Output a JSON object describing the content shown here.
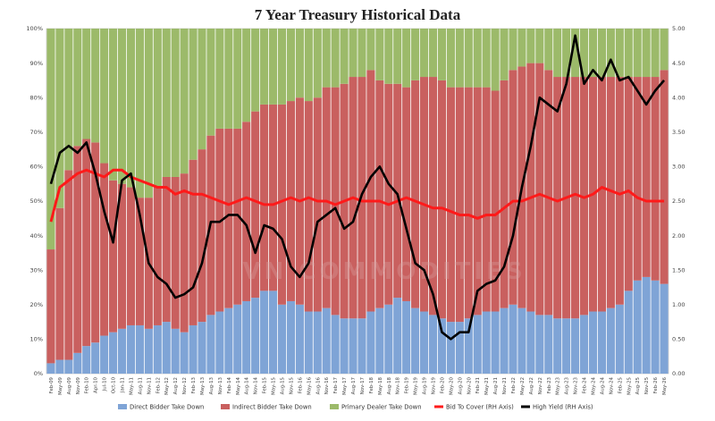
{
  "chart_data": {
    "type": "bar",
    "title": "7 Year Treasury Historical Data",
    "watermark": "VN COMMODITIES",
    "left_axis": {
      "ylim": [
        0,
        100
      ],
      "ticks": [
        "0%",
        "10%",
        "20%",
        "30%",
        "40%",
        "50%",
        "60%",
        "70%",
        "80%",
        "90%",
        "100%"
      ]
    },
    "right_axis": {
      "ylim": [
        0,
        5
      ],
      "ticks": [
        "0.00",
        "0.50",
        "1.00",
        "1.50",
        "2.00",
        "2.50",
        "3.00",
        "3.50",
        "4.00",
        "4.50",
        "5.00"
      ]
    },
    "x_tick_labels": [
      "Feb-09",
      "May-09",
      "Aug-09",
      "Nov-09",
      "Feb-10",
      "Apr-10",
      "Jul-10",
      "Oct-10",
      "Jan-11",
      "May-11",
      "Aug-11",
      "Nov-11",
      "Feb-12",
      "May-12",
      "Aug-12",
      "Nov-12",
      "Feb-13",
      "May-13",
      "Aug-13",
      "Nov-13",
      "Feb-14",
      "May-14",
      "Aug-14",
      "Nov-14",
      "Feb-15",
      "May-15",
      "Aug-15",
      "Nov-15",
      "Feb-16",
      "May-16",
      "Aug-16",
      "Nov-16",
      "Feb-17",
      "May-17",
      "Aug-17",
      "Nov-17",
      "Feb-18",
      "May-18",
      "Aug-18",
      "Nov-18",
      "Feb-19",
      "May-19",
      "Aug-19",
      "Nov-19",
      "Feb-20",
      "May-20",
      "Aug-20",
      "Nov-20",
      "Feb-21",
      "May-21",
      "Aug-21",
      "Nov-21",
      "Feb-22",
      "May-22",
      "Aug-22",
      "Nov-22",
      "Feb-23",
      "May-23",
      "Aug-23",
      "Nov-23",
      "Feb-24",
      "May-24",
      "Aug-24",
      "Nov-24",
      "Feb-25",
      "May-25",
      "Aug-25",
      "Nov-25",
      "Feb-26",
      "May-26"
    ],
    "legend": [
      {
        "label": "Direct Bidder Take Down",
        "color": "#7fa4d6",
        "kind": "bar"
      },
      {
        "label": "Indirect Bidder Take Down",
        "color": "#c9605f",
        "kind": "bar"
      },
      {
        "label": "Primary Dealer Take Down",
        "color": "#9cba6a",
        "kind": "bar"
      },
      {
        "label": "Bid To Cover (RH Axis)",
        "color": "#ff1a1a",
        "kind": "line"
      },
      {
        "label": "High Yield (RH Axis)",
        "color": "#000000",
        "kind": "line"
      }
    ],
    "series": [
      {
        "name": "Direct Bidder Take Down",
        "axis": "left",
        "unit": "%",
        "values": [
          3,
          4,
          4,
          6,
          8,
          9,
          11,
          12,
          13,
          14,
          14,
          13,
          14,
          15,
          13,
          12,
          14,
          15,
          17,
          18,
          19,
          20,
          21,
          22,
          24,
          24,
          20,
          21,
          20,
          18,
          18,
          19,
          17,
          16,
          16,
          16,
          18,
          19,
          20,
          22,
          21,
          19,
          18,
          17,
          16,
          15,
          15,
          16,
          17,
          18,
          18,
          19,
          20,
          19,
          18,
          17,
          17,
          16,
          16,
          16,
          17,
          18,
          18,
          19,
          20,
          24,
          27,
          28,
          27,
          26
        ]
      },
      {
        "name": "Indirect Bidder Take Down",
        "axis": "left",
        "unit": "%",
        "values": [
          33,
          44,
          55,
          60,
          60,
          58,
          50,
          44,
          42,
          40,
          37,
          38,
          40,
          42,
          44,
          46,
          48,
          50,
          52,
          53,
          52,
          51,
          52,
          54,
          54,
          54,
          58,
          58,
          60,
          61,
          62,
          64,
          66,
          68,
          70,
          70,
          70,
          66,
          64,
          62,
          62,
          66,
          68,
          69,
          69,
          68,
          68,
          67,
          66,
          65,
          64,
          66,
          68,
          70,
          72,
          73,
          71,
          70,
          70,
          70,
          69,
          68,
          68,
          67,
          66,
          62,
          59,
          58,
          59,
          62
        ]
      },
      {
        "name": "Primary Dealer Take Down",
        "axis": "left",
        "unit": "%",
        "values": [
          64,
          52,
          41,
          34,
          32,
          33,
          39,
          44,
          45,
          46,
          49,
          49,
          46,
          43,
          43,
          42,
          38,
          35,
          31,
          29,
          29,
          29,
          27,
          24,
          22,
          22,
          22,
          21,
          20,
          21,
          20,
          17,
          17,
          16,
          14,
          14,
          12,
          15,
          16,
          16,
          17,
          15,
          14,
          14,
          15,
          17,
          17,
          17,
          17,
          17,
          18,
          15,
          12,
          11,
          10,
          10,
          12,
          14,
          14,
          14,
          14,
          14,
          14,
          14,
          14,
          14,
          14,
          14,
          14,
          12
        ]
      },
      {
        "name": "Bid To Cover (RH Axis)",
        "axis": "right",
        "values": [
          2.2,
          2.7,
          2.8,
          2.9,
          2.95,
          2.9,
          2.85,
          2.95,
          2.95,
          2.85,
          2.8,
          2.75,
          2.7,
          2.7,
          2.6,
          2.65,
          2.6,
          2.6,
          2.55,
          2.5,
          2.45,
          2.5,
          2.55,
          2.5,
          2.45,
          2.45,
          2.5,
          2.55,
          2.5,
          2.55,
          2.5,
          2.5,
          2.45,
          2.5,
          2.55,
          2.5,
          2.5,
          2.5,
          2.45,
          2.5,
          2.55,
          2.5,
          2.45,
          2.4,
          2.4,
          2.35,
          2.3,
          2.3,
          2.25,
          2.3,
          2.3,
          2.4,
          2.5,
          2.5,
          2.55,
          2.6,
          2.55,
          2.5,
          2.55,
          2.6,
          2.55,
          2.6,
          2.7,
          2.65,
          2.6,
          2.65,
          2.55,
          2.5,
          2.5,
          2.5
        ]
      },
      {
        "name": "High Yield (RH Axis)",
        "axis": "right",
        "values": [
          2.75,
          3.2,
          3.3,
          3.2,
          3.35,
          2.9,
          2.35,
          1.9,
          2.8,
          2.9,
          2.3,
          1.6,
          1.4,
          1.3,
          1.1,
          1.15,
          1.25,
          1.6,
          2.2,
          2.2,
          2.3,
          2.3,
          2.15,
          1.75,
          2.15,
          2.1,
          1.95,
          1.55,
          1.4,
          1.6,
          2.2,
          2.3,
          2.4,
          2.1,
          2.2,
          2.6,
          2.85,
          3.0,
          2.75,
          2.6,
          2.1,
          1.6,
          1.5,
          1.15,
          0.6,
          0.5,
          0.6,
          0.6,
          1.2,
          1.3,
          1.35,
          1.55,
          2.0,
          2.7,
          3.3,
          4.0,
          3.9,
          3.8,
          4.2,
          4.9,
          4.2,
          4.4,
          4.25,
          4.55,
          4.25,
          4.3,
          4.1,
          3.9,
          4.1,
          4.25
        ]
      }
    ]
  }
}
